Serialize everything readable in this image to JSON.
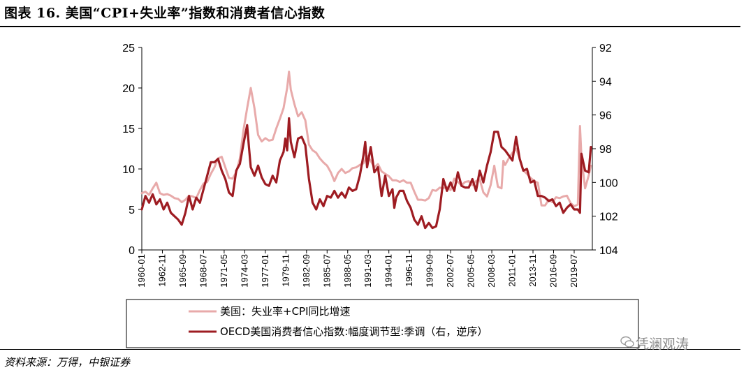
{
  "header": {
    "title": "图表 16. 美国“CPI+失业率”指数和消费者信心指数"
  },
  "footer": {
    "source": "资料来源：万得，中银证券",
    "watermark": "凭澜观涛"
  },
  "colors": {
    "series1": "#e8aaaa",
    "series2": "#9e1c22",
    "axis": "#000000"
  },
  "chart_data": {
    "type": "line",
    "x_tick_labels": [
      "1960-01",
      "1962-11",
      "1965-09",
      "1968-07",
      "1971-05",
      "1974-03",
      "1977-01",
      "1979-11",
      "1982-09",
      "1985-07",
      "1988-05",
      "1991-03",
      "1994-01",
      "1996-11",
      "1999-09",
      "2002-07",
      "2005-05",
      "2008-03",
      "2011-01",
      "2013-11",
      "2016-09",
      "2019-07"
    ],
    "y_left": {
      "min": 0,
      "max": 25,
      "ticks": [
        "0",
        "5",
        "10",
        "15",
        "20",
        "25"
      ]
    },
    "y_right": {
      "min": 92,
      "max": 104,
      "inverted": true,
      "ticks": [
        "92",
        "94",
        "96",
        "98",
        "100",
        "102",
        "104"
      ]
    },
    "legend_position": "bottom",
    "series": [
      {
        "name": "美国：失业率+CPI同比增速",
        "axis": "left",
        "points": [
          [
            1960.0,
            7.0
          ],
          [
            1960.5,
            7.2
          ],
          [
            1961.0,
            6.8
          ],
          [
            1961.5,
            7.6
          ],
          [
            1962.0,
            8.3
          ],
          [
            1962.5,
            7.0
          ],
          [
            1963.0,
            6.8
          ],
          [
            1963.5,
            6.9
          ],
          [
            1964.0,
            6.7
          ],
          [
            1964.5,
            6.4
          ],
          [
            1965.0,
            6.3
          ],
          [
            1965.5,
            5.9
          ],
          [
            1966.0,
            6.2
          ],
          [
            1966.5,
            6.7
          ],
          [
            1967.0,
            6.6
          ],
          [
            1967.5,
            6.4
          ],
          [
            1968.0,
            7.4
          ],
          [
            1968.5,
            8.2
          ],
          [
            1969.0,
            8.4
          ],
          [
            1969.5,
            9.4
          ],
          [
            1970.0,
            10.2
          ],
          [
            1970.5,
            11.3
          ],
          [
            1971.0,
            11.5
          ],
          [
            1971.5,
            10.2
          ],
          [
            1972.0,
            8.9
          ],
          [
            1972.5,
            8.8
          ],
          [
            1973.0,
            9.6
          ],
          [
            1973.5,
            11.3
          ],
          [
            1974.0,
            14.8
          ],
          [
            1974.5,
            17.5
          ],
          [
            1975.0,
            20.0
          ],
          [
            1975.5,
            17.5
          ],
          [
            1976.0,
            14.2
          ],
          [
            1976.5,
            13.4
          ],
          [
            1977.0,
            13.8
          ],
          [
            1977.5,
            13.5
          ],
          [
            1978.0,
            13.6
          ],
          [
            1978.5,
            15.0
          ],
          [
            1979.0,
            16.2
          ],
          [
            1979.5,
            17.5
          ],
          [
            1980.0,
            20.0
          ],
          [
            1980.25,
            22.0
          ],
          [
            1980.5,
            19.8
          ],
          [
            1981.0,
            18.0
          ],
          [
            1981.5,
            16.5
          ],
          [
            1982.0,
            17.0
          ],
          [
            1982.5,
            16.0
          ],
          [
            1983.0,
            13.0
          ],
          [
            1983.5,
            12.3
          ],
          [
            1984.0,
            12.0
          ],
          [
            1984.5,
            11.3
          ],
          [
            1985.0,
            10.8
          ],
          [
            1985.5,
            10.4
          ],
          [
            1986.0,
            9.6
          ],
          [
            1986.5,
            8.5
          ],
          [
            1987.0,
            9.5
          ],
          [
            1987.5,
            10.0
          ],
          [
            1988.0,
            9.5
          ],
          [
            1988.5,
            9.7
          ],
          [
            1989.0,
            10.1
          ],
          [
            1989.5,
            10.2
          ],
          [
            1990.0,
            10.5
          ],
          [
            1990.5,
            10.7
          ],
          [
            1991.0,
            11.6
          ],
          [
            1991.5,
            11.0
          ],
          [
            1992.0,
            10.2
          ],
          [
            1992.5,
            10.6
          ],
          [
            1993.0,
            9.7
          ],
          [
            1993.5,
            9.4
          ],
          [
            1994.0,
            9.1
          ],
          [
            1994.5,
            8.6
          ],
          [
            1995.0,
            8.6
          ],
          [
            1995.5,
            8.4
          ],
          [
            1996.0,
            8.6
          ],
          [
            1996.5,
            8.3
          ],
          [
            1997.0,
            8.3
          ],
          [
            1997.5,
            7.2
          ],
          [
            1998.0,
            6.2
          ],
          [
            1998.5,
            6.2
          ],
          [
            1999.0,
            6.1
          ],
          [
            1999.5,
            6.4
          ],
          [
            2000.0,
            7.4
          ],
          [
            2000.5,
            7.3
          ],
          [
            2001.0,
            7.7
          ],
          [
            2001.5,
            7.6
          ],
          [
            2002.0,
            7.8
          ],
          [
            2002.5,
            7.4
          ],
          [
            2003.0,
            8.8
          ],
          [
            2003.5,
            8.4
          ],
          [
            2004.0,
            8.0
          ],
          [
            2004.5,
            8.4
          ],
          [
            2005.0,
            8.5
          ],
          [
            2005.5,
            8.0
          ],
          [
            2006.0,
            8.5
          ],
          [
            2006.5,
            8.7
          ],
          [
            2007.0,
            7.1
          ],
          [
            2007.5,
            6.6
          ],
          [
            2008.0,
            8.0
          ],
          [
            2008.5,
            10.4
          ],
          [
            2009.0,
            7.8
          ],
          [
            2009.5,
            7.6
          ],
          [
            2009.75,
            11.0
          ],
          [
            2010.0,
            10.5
          ],
          [
            2010.5,
            11.3
          ],
          [
            2011.0,
            12.0
          ],
          [
            2011.5,
            12.5
          ],
          [
            2012.0,
            11.3
          ],
          [
            2012.5,
            9.8
          ],
          [
            2013.0,
            9.4
          ],
          [
            2013.5,
            8.9
          ],
          [
            2014.0,
            8.5
          ],
          [
            2014.5,
            8.3
          ],
          [
            2015.0,
            5.5
          ],
          [
            2015.5,
            5.5
          ],
          [
            2016.0,
            6.2
          ],
          [
            2016.5,
            5.9
          ],
          [
            2017.0,
            6.5
          ],
          [
            2017.5,
            6.4
          ],
          [
            2018.0,
            6.6
          ],
          [
            2018.5,
            6.7
          ],
          [
            2019.0,
            5.8
          ],
          [
            2019.5,
            5.4
          ],
          [
            2020.0,
            5.6
          ],
          [
            2020.3,
            15.3
          ],
          [
            2020.5,
            11.5
          ],
          [
            2021.0,
            7.6
          ],
          [
            2021.5,
            9.2
          ],
          [
            2021.8,
            10.4
          ]
        ]
      },
      {
        "name": "OECD美国消费者信心指数:幅度调节型:季调（右，逆序）",
        "axis": "right",
        "points": [
          [
            1960.0,
            101.6
          ],
          [
            1960.5,
            100.8
          ],
          [
            1961.0,
            101.2
          ],
          [
            1961.5,
            100.7
          ],
          [
            1962.0,
            101.3
          ],
          [
            1962.5,
            101.0
          ],
          [
            1963.0,
            101.6
          ],
          [
            1963.5,
            101.2
          ],
          [
            1964.0,
            101.8
          ],
          [
            1964.5,
            102.0
          ],
          [
            1965.0,
            102.2
          ],
          [
            1965.5,
            102.5
          ],
          [
            1966.0,
            101.8
          ],
          [
            1966.5,
            100.8
          ],
          [
            1967.0,
            101.6
          ],
          [
            1967.5,
            100.9
          ],
          [
            1968.0,
            101.2
          ],
          [
            1968.5,
            100.4
          ],
          [
            1969.0,
            99.6
          ],
          [
            1969.5,
            98.8
          ],
          [
            1970.0,
            98.8
          ],
          [
            1970.5,
            98.6
          ],
          [
            1971.0,
            99.3
          ],
          [
            1971.5,
            99.8
          ],
          [
            1972.0,
            100.6
          ],
          [
            1972.5,
            100.8
          ],
          [
            1973.0,
            99.3
          ],
          [
            1973.5,
            98.9
          ],
          [
            1974.0,
            97.7
          ],
          [
            1974.5,
            96.6
          ],
          [
            1974.75,
            97.9
          ],
          [
            1975.0,
            99.1
          ],
          [
            1975.5,
            99.6
          ],
          [
            1976.0,
            99.0
          ],
          [
            1976.5,
            99.7
          ],
          [
            1977.0,
            100.1
          ],
          [
            1977.5,
            100.2
          ],
          [
            1978.0,
            99.6
          ],
          [
            1978.5,
            100.0
          ],
          [
            1979.0,
            98.7
          ],
          [
            1979.5,
            98.2
          ],
          [
            1979.75,
            97.4
          ],
          [
            1980.0,
            98.1
          ],
          [
            1980.25,
            96.2
          ],
          [
            1980.5,
            97.6
          ],
          [
            1981.0,
            98.5
          ],
          [
            1981.5,
            97.4
          ],
          [
            1982.0,
            97.3
          ],
          [
            1982.5,
            97.8
          ],
          [
            1983.0,
            99.8
          ],
          [
            1983.5,
            101.2
          ],
          [
            1984.0,
            101.6
          ],
          [
            1984.5,
            101.0
          ],
          [
            1985.0,
            101.4
          ],
          [
            1985.5,
            100.8
          ],
          [
            1986.0,
            100.9
          ],
          [
            1986.5,
            100.5
          ],
          [
            1987.0,
            100.9
          ],
          [
            1987.5,
            100.6
          ],
          [
            1988.0,
            100.9
          ],
          [
            1988.5,
            100.3
          ],
          [
            1989.0,
            100.5
          ],
          [
            1989.5,
            100.4
          ],
          [
            1990.0,
            99.6
          ],
          [
            1990.5,
            98.4
          ],
          [
            1990.75,
            97.6
          ],
          [
            1991.0,
            99.1
          ],
          [
            1991.5,
            97.9
          ],
          [
            1992.0,
            99.4
          ],
          [
            1992.5,
            99.1
          ],
          [
            1993.0,
            100.8
          ],
          [
            1993.5,
            99.6
          ],
          [
            1994.0,
            100.8
          ],
          [
            1994.5,
            100.4
          ],
          [
            1994.75,
            101.5
          ],
          [
            1995.0,
            100.9
          ],
          [
            1995.5,
            100.5
          ],
          [
            1996.0,
            100.5
          ],
          [
            1996.5,
            101.1
          ],
          [
            1997.0,
            101.5
          ],
          [
            1997.5,
            102.2
          ],
          [
            1998.0,
            102.5
          ],
          [
            1998.5,
            102.0
          ],
          [
            1999.0,
            102.7
          ],
          [
            1999.5,
            102.4
          ],
          [
            2000.0,
            102.7
          ],
          [
            2000.5,
            102.6
          ],
          [
            2001.0,
            101.6
          ],
          [
            2001.5,
            99.8
          ],
          [
            2002.0,
            100.5
          ],
          [
            2002.5,
            100.0
          ],
          [
            2003.0,
            100.5
          ],
          [
            2003.5,
            99.4
          ],
          [
            2004.0,
            100.2
          ],
          [
            2004.5,
            100.3
          ],
          [
            2005.0,
            100.3
          ],
          [
            2005.5,
            99.8
          ],
          [
            2006.0,
            100.5
          ],
          [
            2006.5,
            99.3
          ],
          [
            2007.0,
            100.0
          ],
          [
            2007.5,
            99.0
          ],
          [
            2008.0,
            98.2
          ],
          [
            2008.5,
            97.0
          ],
          [
            2009.0,
            97.0
          ],
          [
            2009.5,
            97.9
          ],
          [
            2010.0,
            98.1
          ],
          [
            2010.5,
            98.4
          ],
          [
            2011.0,
            98.7
          ],
          [
            2011.5,
            97.3
          ],
          [
            2012.0,
            98.6
          ],
          [
            2012.5,
            99.3
          ],
          [
            2013.0,
            99.2
          ],
          [
            2013.5,
            100.0
          ],
          [
            2014.0,
            99.9
          ],
          [
            2014.5,
            100.8
          ],
          [
            2015.0,
            100.8
          ],
          [
            2015.5,
            100.9
          ],
          [
            2016.0,
            101.1
          ],
          [
            2016.5,
            101.0
          ],
          [
            2017.0,
            101.4
          ],
          [
            2017.5,
            101.2
          ],
          [
            2018.0,
            101.8
          ],
          [
            2018.5,
            101.5
          ],
          [
            2019.0,
            101.3
          ],
          [
            2019.5,
            101.6
          ],
          [
            2020.0,
            101.6
          ],
          [
            2020.3,
            101.8
          ],
          [
            2020.5,
            98.3
          ],
          [
            2021.0,
            99.3
          ],
          [
            2021.5,
            99.4
          ],
          [
            2021.8,
            97.9
          ]
        ]
      }
    ]
  }
}
